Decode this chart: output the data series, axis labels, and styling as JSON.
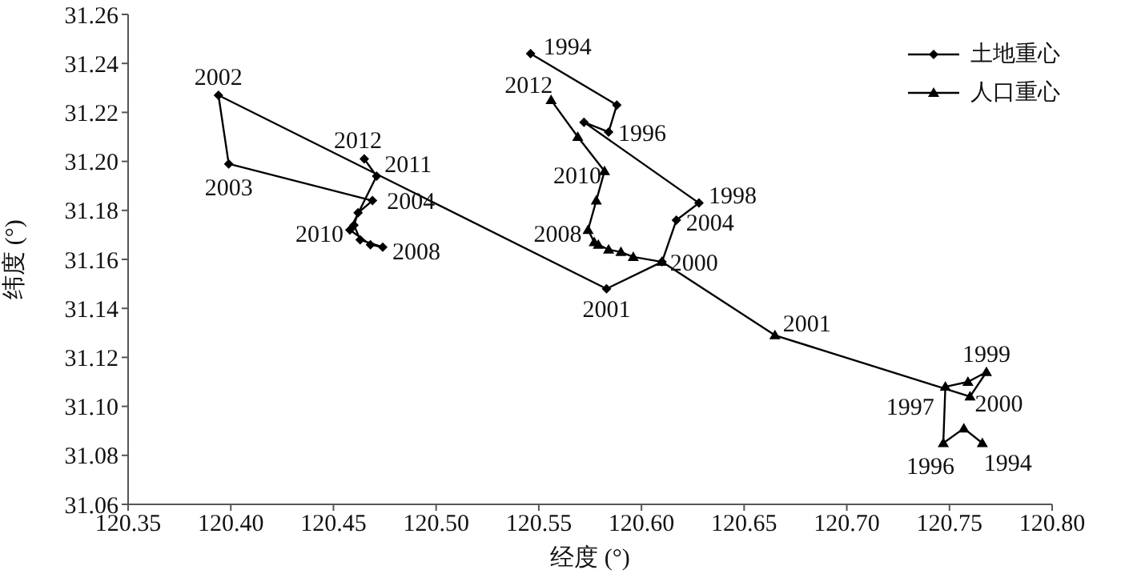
{
  "chart_data": {
    "type": "line",
    "xlabel": "经度 (°)",
    "ylabel": "纬度 (°)",
    "xlim": [
      120.35,
      120.8
    ],
    "xticks": [
      {
        "value": 120.35,
        "label": "120.35"
      },
      {
        "value": 120.4,
        "label": "120.40"
      },
      {
        "value": 120.45,
        "label": "120.45"
      },
      {
        "value": 120.5,
        "label": "120.50"
      },
      {
        "value": 120.55,
        "label": "120.55"
      },
      {
        "value": 120.6,
        "label": "120.60"
      },
      {
        "value": 120.65,
        "label": "120.65"
      },
      {
        "value": 120.7,
        "label": "120.70"
      },
      {
        "value": 120.75,
        "label": "120.75"
      },
      {
        "value": 120.8,
        "label": "120.80"
      }
    ],
    "ylim": [
      31.06,
      31.26
    ],
    "yticks": [
      31.06,
      31.08,
      {
        "value": 31.1,
        "label": "31.10"
      },
      31.12,
      31.14,
      31.16,
      31.18,
      {
        "value": 31.2,
        "label": "31.20"
      },
      31.22,
      31.24,
      31.26
    ],
    "grid": false,
    "legend": "top right",
    "series": [
      {
        "name": "土地重心",
        "color": "#000000",
        "marker": "diamond",
        "x": [
          120.546,
          120.588,
          120.584,
          120.572,
          120.628,
          120.617,
          120.61,
          120.583,
          120.394,
          120.399,
          120.469,
          120.462,
          120.46,
          120.463,
          120.474,
          120.468,
          120.458,
          120.471,
          120.465
        ],
        "values": [
          31.244,
          31.223,
          31.212,
          31.216,
          31.183,
          31.176,
          31.159,
          31.148,
          31.227,
          31.199,
          31.184,
          31.179,
          31.174,
          31.168,
          31.165,
          31.166,
          31.172,
          31.194,
          31.201
        ]
      },
      {
        "name": "人口重心",
        "color": "#000000",
        "marker": "triangle",
        "x": [
          120.766,
          120.757,
          120.747,
          120.748,
          120.759,
          120.768,
          120.76,
          120.665,
          120.61,
          120.596,
          120.59,
          120.584,
          120.579,
          120.577,
          120.574,
          120.578,
          120.582,
          120.569,
          120.556
        ],
        "values": [
          31.085,
          31.091,
          31.085,
          31.108,
          31.11,
          31.114,
          31.104,
          31.129,
          31.159,
          31.161,
          31.163,
          31.164,
          31.166,
          31.167,
          31.172,
          31.184,
          31.196,
          31.21,
          31.225
        ]
      }
    ],
    "annotations": [
      {
        "text": "1994",
        "x": 120.546,
        "y": 31.244
      },
      {
        "text": "1996",
        "x": 120.584,
        "y": 31.212
      },
      {
        "text": "1998",
        "x": 120.628,
        "y": 31.183
      },
      {
        "text": "2004",
        "x": 120.617,
        "y": 31.176
      },
      {
        "text": "2000",
        "x": 120.61,
        "y": 31.159
      },
      {
        "text": "2001",
        "x": 120.583,
        "y": 31.148
      },
      {
        "text": "2002",
        "x": 120.394,
        "y": 31.227
      },
      {
        "text": "2003",
        "x": 120.399,
        "y": 31.199
      },
      {
        "text": "2012",
        "x": 120.465,
        "y": 31.201
      },
      {
        "text": "2011",
        "x": 120.471,
        "y": 31.194
      },
      {
        "text": "2004",
        "x": 120.469,
        "y": 31.184
      },
      {
        "text": "2010",
        "x": 120.458,
        "y": 31.172
      },
      {
        "text": "2008",
        "x": 120.474,
        "y": 31.165
      },
      {
        "text": "2012",
        "x": 120.556,
        "y": 31.225
      },
      {
        "text": "2010",
        "x": 120.582,
        "y": 31.196
      },
      {
        "text": "2008",
        "x": 120.574,
        "y": 31.172
      },
      {
        "text": "2001",
        "x": 120.665,
        "y": 31.129
      },
      {
        "text": "1999",
        "x": 120.768,
        "y": 31.114
      },
      {
        "text": "2000",
        "x": 120.76,
        "y": 31.104
      },
      {
        "text": "1997",
        "x": 120.748,
        "y": 31.108
      },
      {
        "text": "1996",
        "x": 120.747,
        "y": 31.085
      },
      {
        "text": "1994",
        "x": 120.766,
        "y": 31.085
      }
    ]
  }
}
